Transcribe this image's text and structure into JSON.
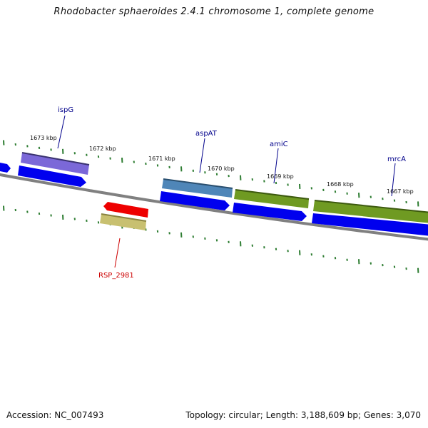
{
  "title": "Rhodobacter sphaeroides 2.4.1 chromosome 1, complete genome",
  "accession": "Accession: NC_007493",
  "topology": "Topology: circular; Length: 3,188,609 bp; Genes: 3,070",
  "colors": {
    "backbone": "#808080",
    "ticks": "#2e7d32",
    "forward_label": "#00008b",
    "reverse_label": "#cc0000",
    "cds_blue": "#0000ee",
    "cds_red": "#ee0000"
  },
  "tick_labels": [
    "1673 kbp",
    "1672 kbp",
    "1671 kbp",
    "1670 kbp",
    "1669 kbp",
    "1668 kbp",
    "1667 kbp"
  ],
  "genes": [
    {
      "name": "ispG",
      "strand": "forward",
      "color": "#7b68d8"
    },
    {
      "name": "aspAT",
      "strand": "forward",
      "color": "#4f86b8"
    },
    {
      "name": "amiC",
      "strand": "forward",
      "color": "#6f9a22"
    },
    {
      "name": "mrcA",
      "strand": "forward",
      "color": "#6f9a22"
    },
    {
      "name": "RSP_2981",
      "strand": "reverse",
      "color": "#c8c070"
    }
  ]
}
